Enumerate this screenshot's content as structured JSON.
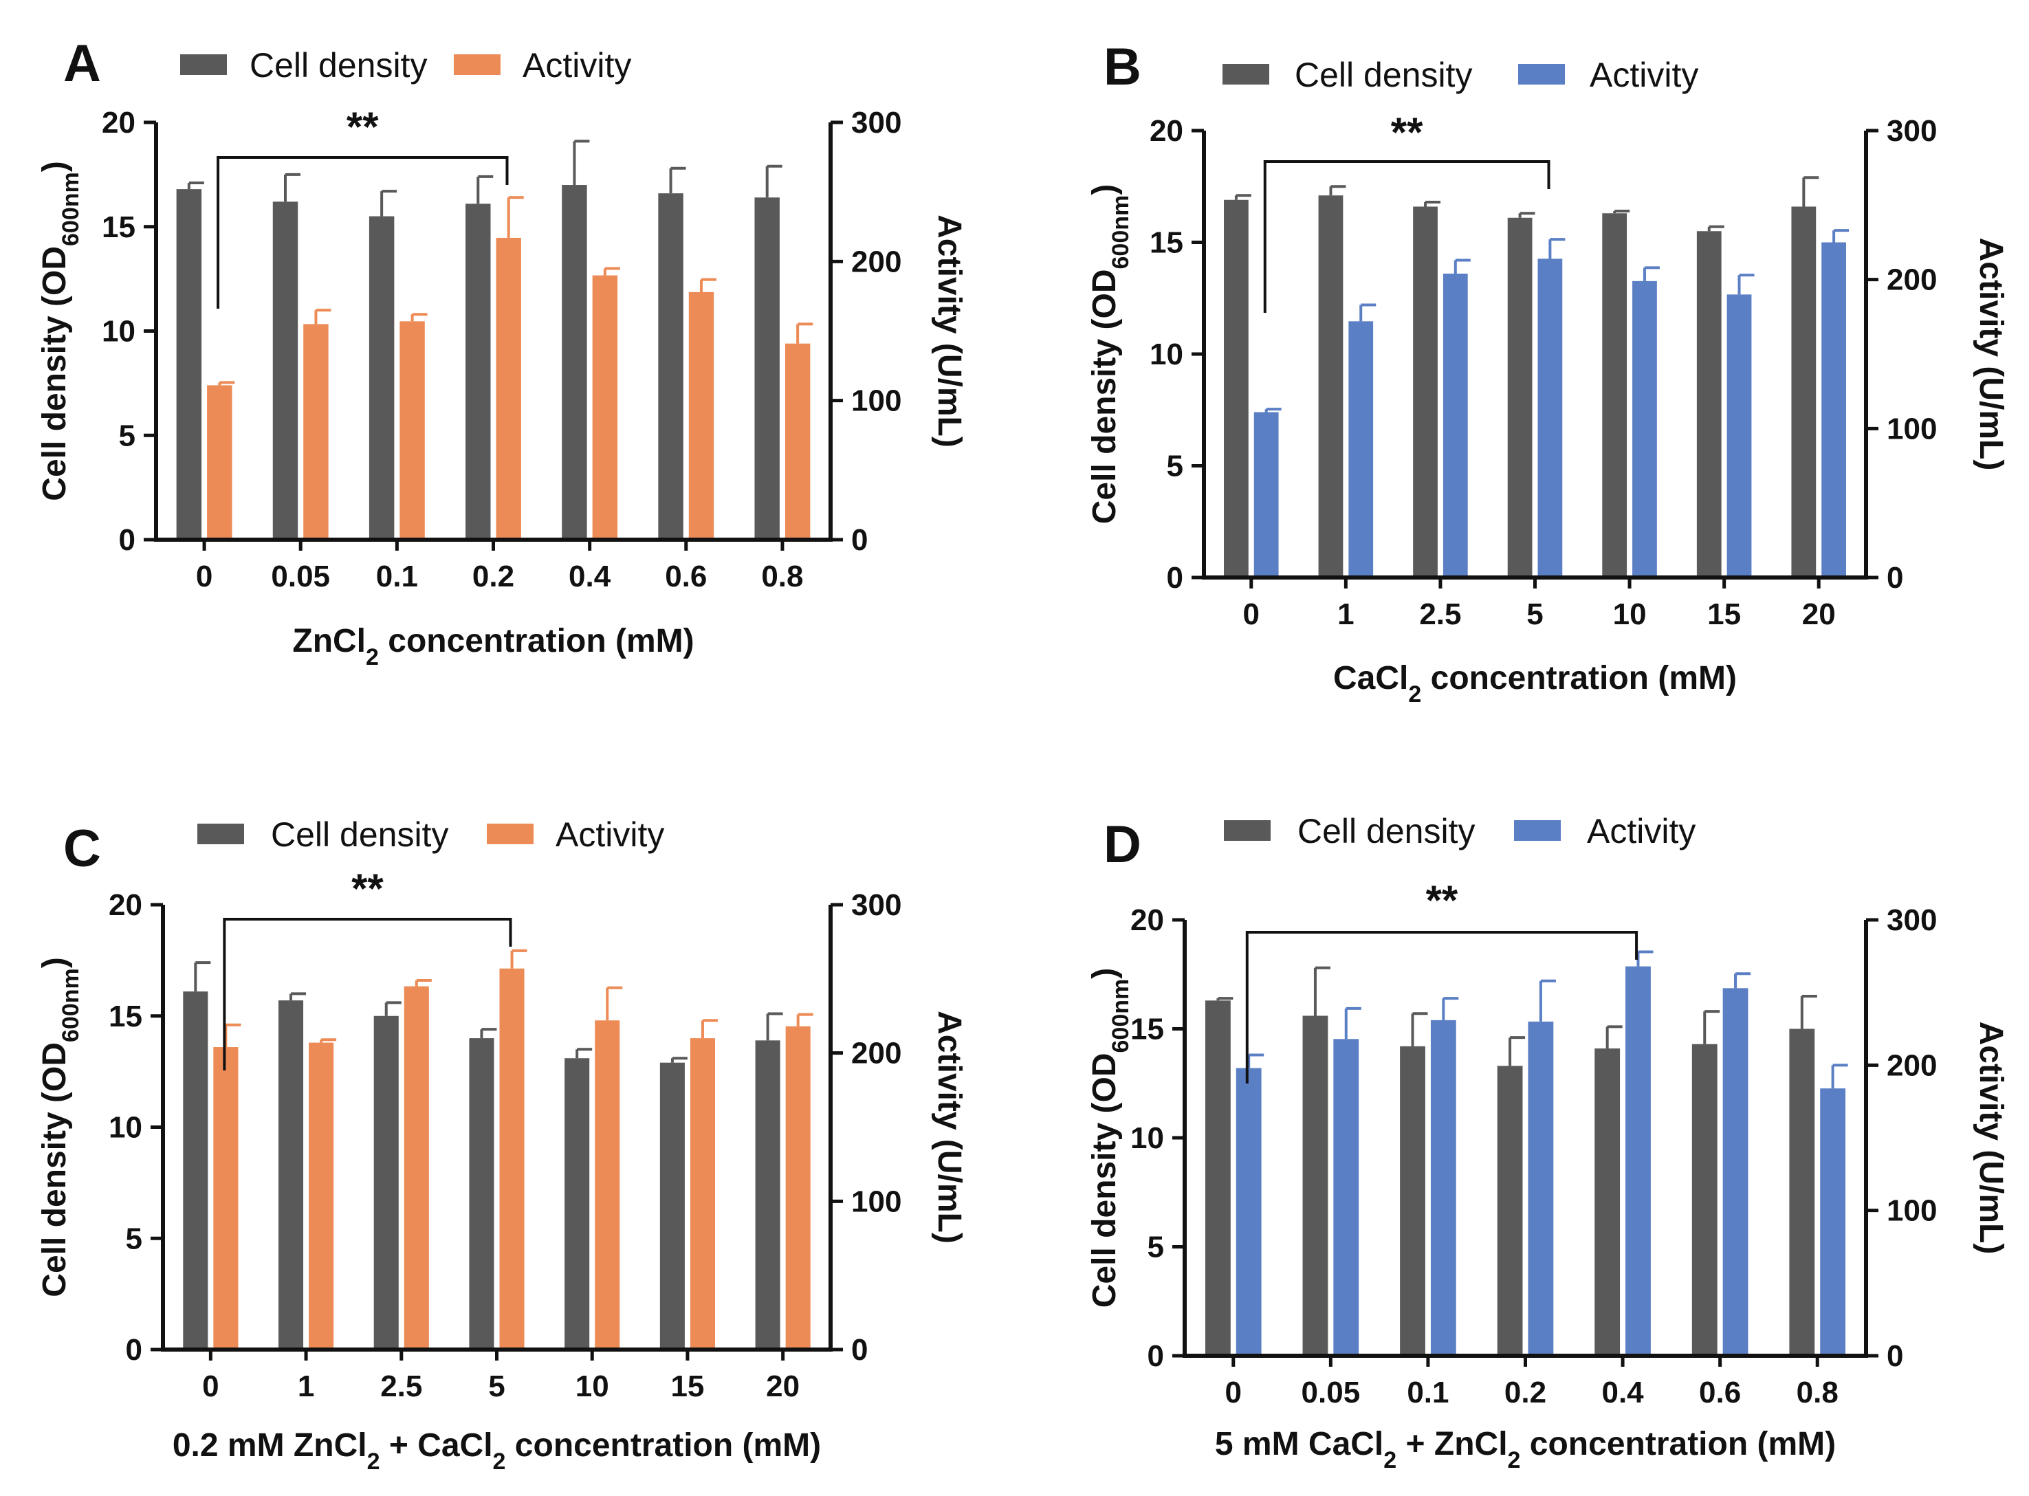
{
  "chart_data": [
    {
      "type": "bar",
      "panel": "A",
      "legend": [
        "Cell density",
        "Activity"
      ],
      "xlabel": [
        "ZnCl",
        "2",
        " concentration (mM)"
      ],
      "ylabel": "Cell density (OD",
      "ylabel_sub": "600nm",
      "y2label": "Activity (U/mL)",
      "categories": [
        "0",
        "0.05",
        "0.1",
        "0.2",
        "0.4",
        "0.6",
        "0.8"
      ],
      "ylim": [
        0,
        20
      ],
      "y2lim": [
        0,
        300
      ],
      "yticks": [
        "0",
        "5",
        "10",
        "15",
        "20"
      ],
      "y2ticks": [
        "0",
        "100",
        "200",
        "300"
      ],
      "colors": {
        "density": "#595959",
        "activity": "#ED8B56"
      },
      "series": [
        {
          "name": "Cell density",
          "axis": "left",
          "values": [
            16.8,
            16.2,
            15.5,
            16.1,
            17.0,
            16.6,
            16.4
          ],
          "errors": [
            0.3,
            1.3,
            1.2,
            1.3,
            2.1,
            1.2,
            1.5
          ]
        },
        {
          "name": "Activity",
          "axis": "right",
          "values": [
            111,
            155,
            157,
            217,
            190,
            178,
            141
          ],
          "errors": [
            2,
            10,
            5,
            29,
            5,
            9,
            14
          ]
        }
      ],
      "significance": {
        "label": "**",
        "from": 0,
        "to": 3
      }
    },
    {
      "type": "bar",
      "panel": "B",
      "legend": [
        "Cell density",
        "Activity"
      ],
      "xlabel": [
        "CaCl",
        "2",
        " concentration (mM)"
      ],
      "ylabel": "Cell density (OD",
      "ylabel_sub": "600nm",
      "y2label": "Activity (U/mL)",
      "categories": [
        "0",
        "1",
        "2.5",
        "5",
        "10",
        "15",
        "20"
      ],
      "ylim": [
        0,
        20
      ],
      "y2lim": [
        0,
        300
      ],
      "yticks": [
        "0",
        "5",
        "10",
        "15",
        "20"
      ],
      "y2ticks": [
        "0",
        "100",
        "200",
        "300"
      ],
      "colors": {
        "density": "#595959",
        "activity": "#5B7FC4"
      },
      "series": [
        {
          "name": "Cell density",
          "axis": "left",
          "values": [
            16.9,
            17.1,
            16.6,
            16.1,
            16.3,
            15.5,
            16.6
          ],
          "errors": [
            0.2,
            0.4,
            0.2,
            0.2,
            0.1,
            0.2,
            1.3
          ]
        },
        {
          "name": "Activity",
          "axis": "right",
          "values": [
            111,
            172,
            204,
            214,
            199,
            190,
            225
          ],
          "errors": [
            2,
            11,
            9,
            13,
            9,
            13,
            8
          ]
        }
      ],
      "significance": {
        "label": "**",
        "from": 0,
        "to": 3
      }
    },
    {
      "type": "bar",
      "panel": "C",
      "legend": [
        "Cell density",
        "Activity"
      ],
      "xlabel": [
        "0.2 mM ZnCl",
        "2",
        " + CaCl",
        "2",
        " concentration (mM)"
      ],
      "ylabel": "Cell density (OD",
      "ylabel_sub": "600nm",
      "y2label": "Activity (U/mL)",
      "categories": [
        "0",
        "1",
        "2.5",
        "5",
        "10",
        "15",
        "20"
      ],
      "ylim": [
        0,
        20
      ],
      "y2lim": [
        0,
        300
      ],
      "yticks": [
        "0",
        "5",
        "10",
        "15",
        "20"
      ],
      "y2ticks": [
        "0",
        "100",
        "200",
        "300"
      ],
      "colors": {
        "density": "#595959",
        "activity": "#ED8B56"
      },
      "series": [
        {
          "name": "Cell density",
          "axis": "left",
          "values": [
            16.1,
            15.7,
            15.0,
            14.0,
            13.1,
            12.9,
            13.9
          ],
          "errors": [
            1.3,
            0.3,
            0.6,
            0.4,
            0.4,
            0.2,
            1.2
          ]
        },
        {
          "name": "Activity",
          "axis": "right",
          "values": [
            204,
            207,
            245,
            257,
            222,
            210,
            218
          ],
          "errors": [
            15,
            2,
            4,
            12,
            22,
            12,
            8
          ]
        }
      ],
      "significance": {
        "label": "**",
        "from": 0,
        "to": 3
      }
    },
    {
      "type": "bar",
      "panel": "D",
      "legend": [
        "Cell density",
        "Activity"
      ],
      "xlabel": [
        "5 mM CaCl",
        "2",
        " + ZnCl",
        "2",
        " concentration (mM)"
      ],
      "ylabel": "Cell density (OD",
      "ylabel_sub": "600nm",
      "y2label": "Activity (U/mL)",
      "categories": [
        "0",
        "0.05",
        "0.1",
        "0.2",
        "0.4",
        "0.6",
        "0.8"
      ],
      "ylim": [
        0,
        20
      ],
      "y2lim": [
        0,
        300
      ],
      "yticks": [
        "0",
        "5",
        "10",
        "15",
        "20"
      ],
      "y2ticks": [
        "0",
        "100",
        "200",
        "300"
      ],
      "colors": {
        "density": "#595959",
        "activity": "#5B7FC4"
      },
      "series": [
        {
          "name": "Cell density",
          "axis": "left",
          "values": [
            16.3,
            15.6,
            14.2,
            13.3,
            14.1,
            14.3,
            15.0
          ],
          "errors": [
            0.1,
            2.2,
            1.5,
            1.3,
            1.0,
            1.5,
            1.5
          ]
        },
        {
          "name": "Activity",
          "axis": "right",
          "values": [
            198,
            218,
            231,
            230,
            268,
            253,
            184
          ],
          "errors": [
            9,
            21,
            15,
            28,
            10,
            10,
            16
          ]
        }
      ],
      "significance": {
        "label": "**",
        "from": 0,
        "to": 4
      }
    }
  ]
}
